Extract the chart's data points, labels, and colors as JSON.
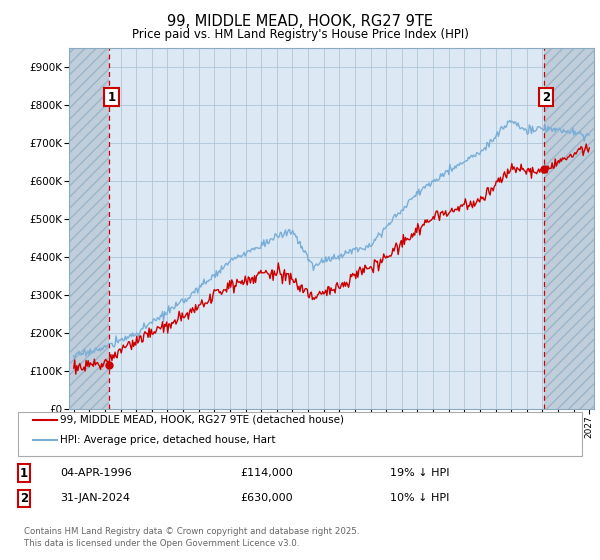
{
  "title": "99, MIDDLE MEAD, HOOK, RG27 9TE",
  "subtitle": "Price paid vs. HM Land Registry's House Price Index (HPI)",
  "xlim_left": 1993.7,
  "xlim_right": 2027.3,
  "ylim_bottom": 0,
  "ylim_top": 950000,
  "yticks": [
    0,
    100000,
    200000,
    300000,
    400000,
    500000,
    600000,
    700000,
    800000,
    900000
  ],
  "ytick_labels": [
    "£0",
    "£100K",
    "£200K",
    "£300K",
    "£400K",
    "£500K",
    "£600K",
    "£700K",
    "£800K",
    "£900K"
  ],
  "point1_x": 1996.27,
  "point1_y": 114000,
  "point1_label": "1",
  "point2_x": 2024.08,
  "point2_y": 630000,
  "point2_label": "2",
  "legend_line1": "99, MIDDLE MEAD, HOOK, RG27 9TE (detached house)",
  "legend_line2": "HPI: Average price, detached house, Hart",
  "ann1_date": "04-APR-1996",
  "ann1_price": "£114,000",
  "ann1_hpi": "19% ↓ HPI",
  "ann2_date": "31-JAN-2024",
  "ann2_price": "£630,000",
  "ann2_hpi": "10% ↓ HPI",
  "footnote": "Contains HM Land Registry data © Crown copyright and database right 2025.\nThis data is licensed under the Open Government Licence v3.0.",
  "red_line_color": "#cc0000",
  "blue_line_color": "#7aaed6",
  "plot_bg_color": "#dce9f5",
  "hatch_color": "#c0cedc",
  "grid_color": "#aec6d8",
  "vline_color": "#cc0000",
  "bg_fig": "#ffffff",
  "title_fontsize": 11,
  "subtitle_fontsize": 9
}
